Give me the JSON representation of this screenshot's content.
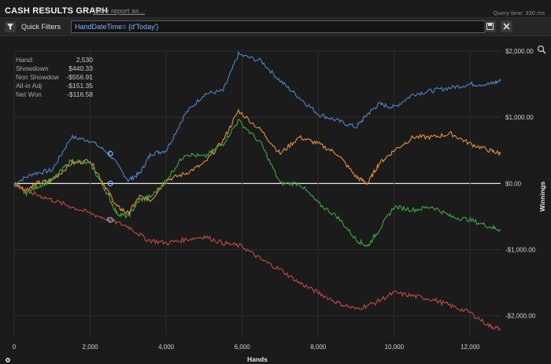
{
  "header": {
    "title": "CASH RESULTS GRAPH",
    "save_link": "Save report as...",
    "query_time": "Query time: 330 ms"
  },
  "filters": {
    "label": "Quick Filters",
    "value": "HandDateTime= {d'Today'}"
  },
  "stats": [
    {
      "label": "Hand:",
      "value": "2,530"
    },
    {
      "label": "Showdown",
      "value": "$440.33"
    },
    {
      "label": "Non Showdow",
      "value": "-$556.91"
    },
    {
      "label": "All-in Adj",
      "value": "-$151.35"
    },
    {
      "label": "Net Won",
      "value": "-$116.58"
    }
  ],
  "icons": {
    "filter": "filter-icon",
    "save": "save-icon",
    "clear": "close-icon",
    "zoom": "zoom-icon",
    "settings": "gear-icon"
  },
  "chart_data": {
    "type": "line",
    "xlabel": "Hands",
    "ylabel": "Winnings",
    "xlim": [
      0,
      12800
    ],
    "ylim": [
      -2300,
      2000
    ],
    "x_ticks": [
      0,
      2000,
      4000,
      6000,
      8000,
      10000,
      12000
    ],
    "x_tick_labels": [
      "0",
      "2,000",
      "4,000",
      "6,000",
      "8,000",
      "10,000",
      "12,000"
    ],
    "y_ticks": [
      2000,
      1000,
      0,
      -1000,
      -2000
    ],
    "y_tick_labels": [
      "$2,000.00",
      "$1,000.00",
      "$0.00",
      "-$1,000.00",
      "-$2,000.00"
    ],
    "grid": true,
    "zero_line": true,
    "series": [
      {
        "color": "#4a86c8",
        "x": [
          0,
          500,
          1000,
          1500,
          2000,
          2500,
          3000,
          3300,
          3600,
          4000,
          4500,
          5000,
          5500,
          5900,
          6500,
          7000,
          7500,
          8000,
          8500,
          9000,
          9300,
          9600,
          10000,
          10500,
          11000,
          11500,
          12000,
          12500,
          12800
        ],
        "y": [
          0,
          150,
          200,
          700,
          650,
          450,
          50,
          150,
          450,
          500,
          1050,
          1350,
          1400,
          1950,
          1850,
          1550,
          1300,
          1050,
          950,
          850,
          1050,
          1200,
          1150,
          1350,
          1400,
          1450,
          1500,
          1500,
          1550
        ]
      },
      {
        "color": "#e8913a",
        "x": [
          0,
          300,
          600,
          1000,
          1500,
          2000,
          2400,
          2700,
          3000,
          3300,
          3600,
          4000,
          4500,
          5000,
          5500,
          5900,
          6500,
          7000,
          7500,
          8000,
          8500,
          9000,
          9300,
          9600,
          10000,
          10500,
          11000,
          11500,
          12000,
          12500,
          12800
        ],
        "y": [
          0,
          -100,
          0,
          50,
          300,
          350,
          -50,
          -350,
          -450,
          -200,
          -250,
          50,
          150,
          300,
          650,
          1100,
          800,
          450,
          700,
          600,
          450,
          100,
          0,
          300,
          500,
          700,
          700,
          750,
          600,
          500,
          450
        ]
      },
      {
        "color": "#3fa83f",
        "x": [
          0,
          300,
          600,
          1000,
          1500,
          2000,
          2400,
          2700,
          3000,
          3300,
          3600,
          4000,
          4500,
          5000,
          5500,
          5900,
          6500,
          7000,
          7500,
          8000,
          8500,
          9000,
          9300,
          9600,
          10000,
          10500,
          11000,
          11500,
          12000,
          12500,
          12800
        ],
        "y": [
          0,
          -150,
          -50,
          50,
          350,
          300,
          -100,
          -450,
          -500,
          -250,
          -200,
          50,
          450,
          400,
          600,
          950,
          600,
          0,
          0,
          -300,
          -500,
          -850,
          -950,
          -700,
          -350,
          -400,
          -350,
          -500,
          -550,
          -650,
          -700
        ]
      },
      {
        "color": "#c24a43",
        "x": [
          0,
          500,
          1000,
          1500,
          2000,
          2500,
          3000,
          3500,
          4000,
          4500,
          5000,
          5500,
          6000,
          6500,
          7000,
          7500,
          8000,
          8500,
          9000,
          9500,
          10000,
          10500,
          11000,
          11500,
          12000,
          12500,
          12800
        ],
        "y": [
          0,
          -150,
          -250,
          -350,
          -450,
          -550,
          -650,
          -850,
          -900,
          -850,
          -800,
          -900,
          -950,
          -1150,
          -1300,
          -1500,
          -1650,
          -1800,
          -1900,
          -1800,
          -1650,
          -1700,
          -1750,
          -1850,
          -1950,
          -2150,
          -2200
        ]
      }
    ]
  }
}
